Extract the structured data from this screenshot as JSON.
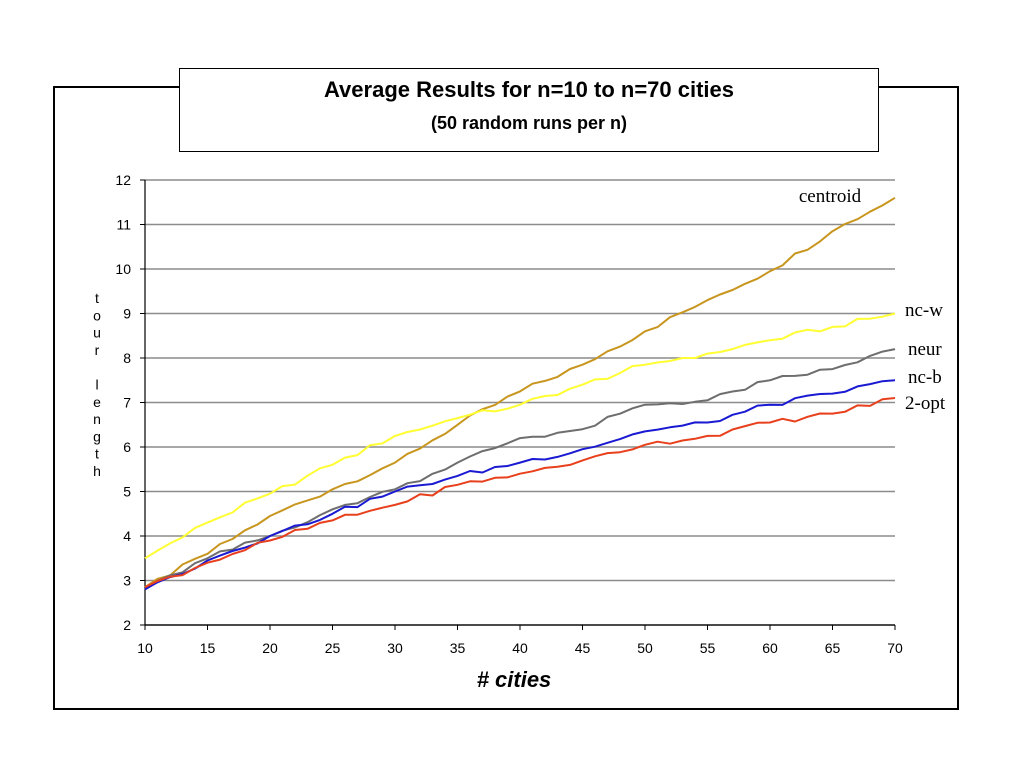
{
  "chart_data": {
    "type": "line",
    "title": "Average Results for n=10 to n=70 cities",
    "subtitle": "(50 random runs per n)",
    "xlabel": "# cities",
    "ylabel": "tour length",
    "xlim": [
      10,
      70
    ],
    "ylim": [
      2,
      12
    ],
    "x_ticks": [
      10,
      15,
      20,
      25,
      30,
      35,
      40,
      45,
      50,
      55,
      60,
      65,
      70
    ],
    "y_ticks": [
      2,
      3,
      4,
      5,
      6,
      7,
      8,
      9,
      10,
      11,
      12
    ],
    "grid": "horizontal",
    "legend": "labels at right end of lines",
    "x": [
      10,
      15,
      20,
      25,
      30,
      35,
      40,
      45,
      50,
      55,
      60,
      65,
      70
    ],
    "series": [
      {
        "name": "centroid",
        "color": "#c8961e",
        "values": [
          2.85,
          3.6,
          4.45,
          5.05,
          5.65,
          6.5,
          7.25,
          7.85,
          8.6,
          9.3,
          9.95,
          10.85,
          11.6
        ]
      },
      {
        "name": "nc-w",
        "color": "#ffff33",
        "values": [
          3.5,
          4.3,
          4.95,
          5.6,
          6.25,
          6.65,
          6.95,
          7.4,
          7.85,
          8.1,
          8.4,
          8.7,
          9.0
        ]
      },
      {
        "name": "neur",
        "color": "#6e6e6e",
        "values": [
          2.8,
          3.5,
          4.0,
          4.6,
          5.05,
          5.65,
          6.2,
          6.4,
          6.95,
          7.05,
          7.5,
          7.75,
          8.2
        ]
      },
      {
        "name": "nc-b",
        "color": "#1a1ad2",
        "values": [
          2.8,
          3.45,
          4.0,
          4.5,
          5.0,
          5.35,
          5.65,
          5.95,
          6.35,
          6.55,
          6.95,
          7.2,
          7.5
        ]
      },
      {
        "name": "2-opt",
        "color": "#e8401c",
        "values": [
          2.85,
          3.4,
          3.9,
          4.35,
          4.7,
          5.15,
          5.4,
          5.7,
          6.05,
          6.25,
          6.55,
          6.75,
          7.1
        ]
      }
    ]
  }
}
